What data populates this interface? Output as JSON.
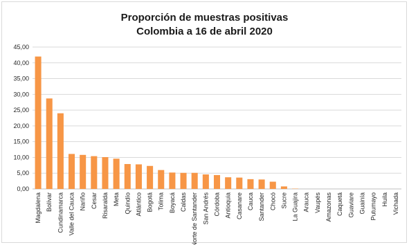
{
  "chart_data": {
    "type": "bar",
    "title": [
      "Proporción de muestras positivas",
      "Colombia a 16 de abril 2020"
    ],
    "xlabel": "",
    "ylabel": "",
    "ylim": [
      0,
      45
    ],
    "yticks": [
      "0,00",
      "5,00",
      "10,00",
      "15,00",
      "20,00",
      "25,00",
      "30,00",
      "35,00",
      "40,00",
      "45,00"
    ],
    "grid": true,
    "bar_color": "#f79646",
    "categories": [
      "Magdalena",
      "Bolívar",
      "Cundinamarca",
      "Valle del Cauca",
      "Nariño",
      "Cesar",
      "Risaralda",
      "Meta",
      "Quindío",
      "Atlántico",
      "Bogotá",
      "Tolima",
      "Boyacá",
      "Caldas",
      "Norte de Santander",
      "San Andrés",
      "Córdoba",
      "Antioquia",
      "Casanare",
      "Cauca",
      "Santander",
      "Chocó",
      "Sucre",
      "La Guajira",
      "Arauca",
      "Vaupés",
      "Amazonas",
      "Caquetá",
      "Guaviare",
      "Guainía",
      "Putumayo",
      "Huila",
      "Vichada"
    ],
    "values": [
      42.0,
      28.7,
      24.0,
      11.1,
      10.8,
      10.4,
      10.1,
      9.6,
      7.9,
      7.8,
      7.3,
      6.0,
      5.2,
      5.1,
      5.1,
      4.6,
      4.4,
      3.7,
      3.6,
      3.1,
      3.0,
      2.3,
      0.8,
      0.1,
      0,
      0,
      0,
      0,
      0,
      0,
      0,
      0,
      0
    ]
  }
}
